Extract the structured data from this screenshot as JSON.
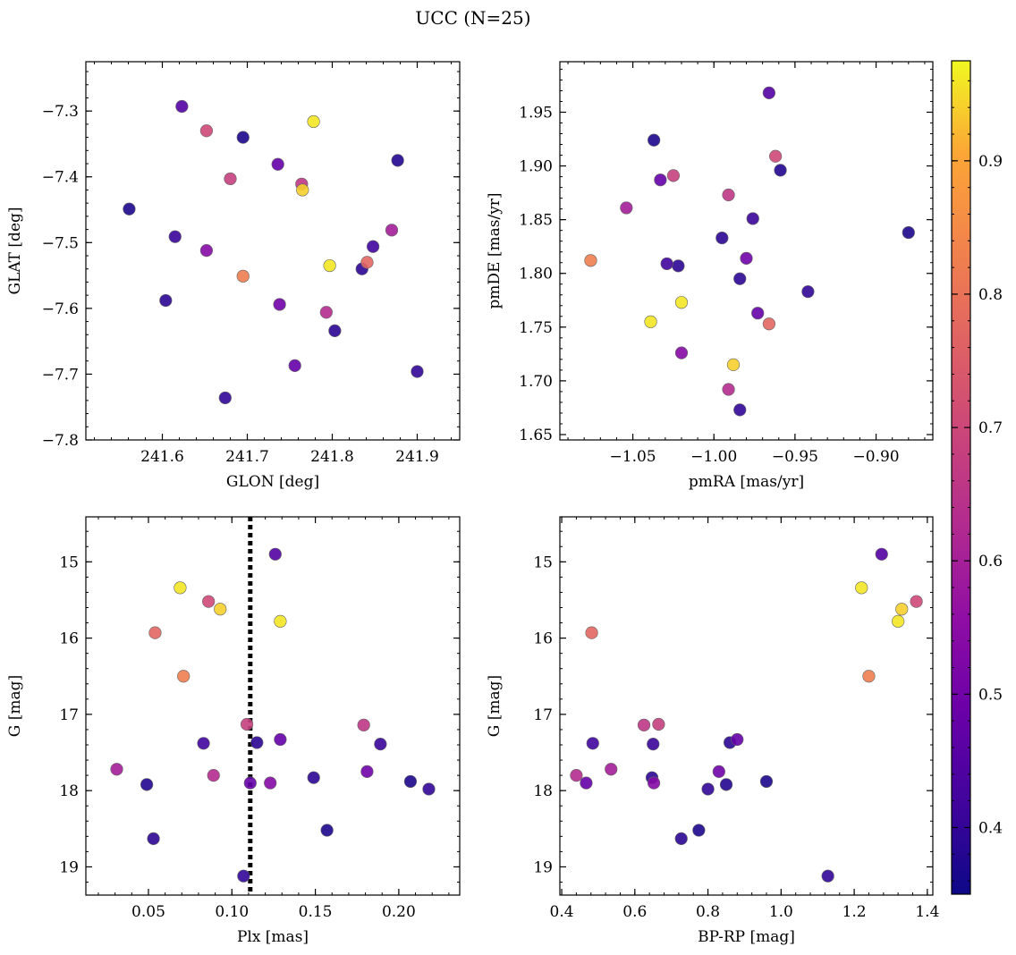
{
  "figure": {
    "title": "UCC (N=25)"
  },
  "colorbar": {
    "colormap": "plasma",
    "vmin": 0.35,
    "vmax": 0.975,
    "ticks": [
      0.4,
      0.5,
      0.6,
      0.7,
      0.8,
      0.9
    ],
    "tick_labels": [
      "0.4",
      "0.5",
      "0.6",
      "0.7",
      "0.8",
      "0.9"
    ]
  },
  "stars": [
    {
      "glon": 241.623,
      "glat": -7.293,
      "pmra": -0.966,
      "pmde": 1.968,
      "plx": 0.126,
      "g": 14.9,
      "bprp": 1.275,
      "p": 0.45
    },
    {
      "glon": 241.652,
      "glat": -7.33,
      "pmra": -0.962,
      "pmde": 1.909,
      "plx": 0.086,
      "g": 15.52,
      "bprp": 1.37,
      "p": 0.7
    },
    {
      "glon": 241.778,
      "glat": -7.316,
      "pmra": -1.02,
      "pmde": 1.773,
      "plx": 0.069,
      "g": 15.34,
      "bprp": 1.22,
      "p": 0.96
    },
    {
      "glon": 241.695,
      "glat": -7.34,
      "pmra": -1.037,
      "pmde": 1.924,
      "plx": 0.157,
      "g": 18.52,
      "bprp": 0.775,
      "p": 0.37
    },
    {
      "glon": 241.877,
      "glat": -7.375,
      "pmra": -0.959,
      "pmde": 1.896,
      "plx": 0.049,
      "g": 17.92,
      "bprp": 0.85,
      "p": 0.38
    },
    {
      "glon": 241.736,
      "glat": -7.381,
      "pmra": -1.033,
      "pmde": 1.887,
      "plx": 0.129,
      "g": 17.33,
      "bprp": 0.88,
      "p": 0.48
    },
    {
      "glon": 241.68,
      "glat": -7.403,
      "pmra": -1.025,
      "pmde": 1.891,
      "plx": 0.109,
      "g": 17.13,
      "bprp": 0.665,
      "p": 0.68
    },
    {
      "glon": 241.764,
      "glat": -7.411,
      "pmra": -0.991,
      "pmde": 1.873,
      "plx": 0.179,
      "g": 17.14,
      "bprp": 0.625,
      "p": 0.66
    },
    {
      "glon": 241.765,
      "glat": -7.42,
      "pmra": -0.988,
      "pmde": 1.715,
      "plx": 0.093,
      "g": 15.62,
      "bprp": 1.33,
      "p": 0.94
    },
    {
      "glon": 241.561,
      "glat": -7.449,
      "pmra": -0.88,
      "pmde": 1.838,
      "plx": 0.207,
      "g": 17.88,
      "bprp": 0.96,
      "p": 0.37
    },
    {
      "glon": 241.87,
      "glat": -7.481,
      "pmra": -1.054,
      "pmde": 1.861,
      "plx": 0.031,
      "g": 17.72,
      "bprp": 0.535,
      "p": 0.6
    },
    {
      "glon": 241.615,
      "glat": -7.491,
      "pmra": -0.976,
      "pmde": 1.851,
      "plx": 0.189,
      "g": 17.39,
      "bprp": 0.65,
      "p": 0.41
    },
    {
      "glon": 241.848,
      "glat": -7.506,
      "pmra": -1.029,
      "pmde": 1.809,
      "plx": 0.083,
      "g": 17.38,
      "bprp": 0.485,
      "p": 0.42
    },
    {
      "glon": 241.652,
      "glat": -7.512,
      "pmra": -1.02,
      "pmde": 1.726,
      "plx": 0.123,
      "g": 17.9,
      "bprp": 0.652,
      "p": 0.54
    },
    {
      "glon": 241.797,
      "glat": -7.535,
      "pmra": -1.039,
      "pmde": 1.755,
      "plx": 0.129,
      "g": 15.78,
      "bprp": 1.32,
      "p": 0.96
    },
    {
      "glon": 241.835,
      "glat": -7.54,
      "pmra": -1.022,
      "pmde": 1.807,
      "plx": 0.053,
      "g": 18.63,
      "bprp": 0.727,
      "p": 0.39
    },
    {
      "glon": 241.841,
      "glat": -7.53,
      "pmra": -0.966,
      "pmde": 1.753,
      "plx": 0.054,
      "g": 15.93,
      "bprp": 0.482,
      "p": 0.77
    },
    {
      "glon": 241.695,
      "glat": -7.551,
      "pmra": -1.076,
      "pmde": 1.812,
      "plx": 0.071,
      "g": 16.5,
      "bprp": 1.24,
      "p": 0.82
    },
    {
      "glon": 241.604,
      "glat": -7.588,
      "pmra": -0.995,
      "pmde": 1.833,
      "plx": 0.149,
      "g": 17.83,
      "bprp": 0.647,
      "p": 0.39
    },
    {
      "glon": 241.738,
      "glat": -7.594,
      "pmra": -0.98,
      "pmde": 1.814,
      "plx": 0.181,
      "g": 17.75,
      "bprp": 0.83,
      "p": 0.5
    },
    {
      "glon": 241.793,
      "glat": -7.606,
      "pmra": -0.991,
      "pmde": 1.692,
      "plx": 0.089,
      "g": 17.8,
      "bprp": 0.44,
      "p": 0.63
    },
    {
      "glon": 241.803,
      "glat": -7.634,
      "pmra": -0.984,
      "pmde": 1.795,
      "plx": 0.115,
      "g": 17.37,
      "bprp": 0.86,
      "p": 0.39
    },
    {
      "glon": 241.756,
      "glat": -7.687,
      "pmra": -0.973,
      "pmde": 1.763,
      "plx": 0.111,
      "g": 17.9,
      "bprp": 0.467,
      "p": 0.48
    },
    {
      "glon": 241.9,
      "glat": -7.696,
      "pmra": -0.942,
      "pmde": 1.783,
      "plx": 0.218,
      "g": 17.98,
      "bprp": 0.8,
      "p": 0.4
    },
    {
      "glon": 241.674,
      "glat": -7.736,
      "pmra": -0.984,
      "pmde": 1.673,
      "plx": 0.107,
      "g": 19.12,
      "bprp": 1.128,
      "p": 0.4
    }
  ],
  "chart_data": [
    {
      "type": "scatter",
      "xlabel": "GLON [deg]",
      "ylabel": "GLAT [deg]",
      "x_field": "glon",
      "y_field": "glat",
      "xlim": [
        241.51,
        241.95
      ],
      "ylim": [
        -7.8,
        -7.225
      ],
      "y_inverted": false,
      "xticks": [
        241.6,
        241.7,
        241.8,
        241.9
      ],
      "xtick_labels": [
        "241.6",
        "241.7",
        "241.8",
        "241.9"
      ],
      "yticks": [
        -7.3,
        -7.4,
        -7.5,
        -7.6,
        -7.7,
        -7.8
      ],
      "ytick_labels": [
        "−7.3",
        "−7.4",
        "−7.5",
        "−7.6",
        "−7.7",
        "−7.8"
      ]
    },
    {
      "type": "scatter",
      "xlabel": "pmRA [mas/yr]",
      "ylabel": "pmDE [mas/yr]",
      "x_field": "pmra",
      "y_field": "pmde",
      "xlim": [
        -1.095,
        -0.865
      ],
      "ylim": [
        1.645,
        1.997
      ],
      "y_inverted": false,
      "xticks": [
        -1.05,
        -1.0,
        -0.95,
        -0.9
      ],
      "xtick_labels": [
        "−1.05",
        "−1.00",
        "−0.95",
        "−0.90"
      ],
      "yticks": [
        1.65,
        1.7,
        1.75,
        1.8,
        1.85,
        1.9,
        1.95
      ],
      "ytick_labels": [
        "1.65",
        "1.70",
        "1.75",
        "1.80",
        "1.85",
        "1.90",
        "1.95"
      ]
    },
    {
      "type": "scatter",
      "xlabel": "Plx [mas]",
      "ylabel": "G [mag]",
      "x_field": "plx",
      "y_field": "g",
      "xlim": [
        0.0125,
        0.2365
      ],
      "ylim": [
        19.37,
        14.41
      ],
      "y_inverted": true,
      "xticks": [
        0.05,
        0.1,
        0.15,
        0.2
      ],
      "xtick_labels": [
        "0.05",
        "0.10",
        "0.15",
        "0.20"
      ],
      "yticks": [
        15,
        16,
        17,
        18,
        19
      ],
      "ytick_labels": [
        "15",
        "16",
        "17",
        "18",
        "19"
      ],
      "vline": 0.111
    },
    {
      "type": "scatter",
      "xlabel": "BP-RP [mag]",
      "ylabel": "G [mag]",
      "x_field": "bprp",
      "y_field": "g",
      "xlim": [
        0.395,
        1.415
      ],
      "ylim": [
        19.37,
        14.41
      ],
      "y_inverted": true,
      "xticks": [
        0.4,
        0.6,
        0.8,
        1.0,
        1.2,
        1.4
      ],
      "xtick_labels": [
        "0.4",
        "0.6",
        "0.8",
        "1.0",
        "1.2",
        "1.4"
      ],
      "yticks": [
        15,
        16,
        17,
        18,
        19
      ],
      "ytick_labels": [
        "15",
        "16",
        "17",
        "18",
        "19"
      ]
    }
  ]
}
